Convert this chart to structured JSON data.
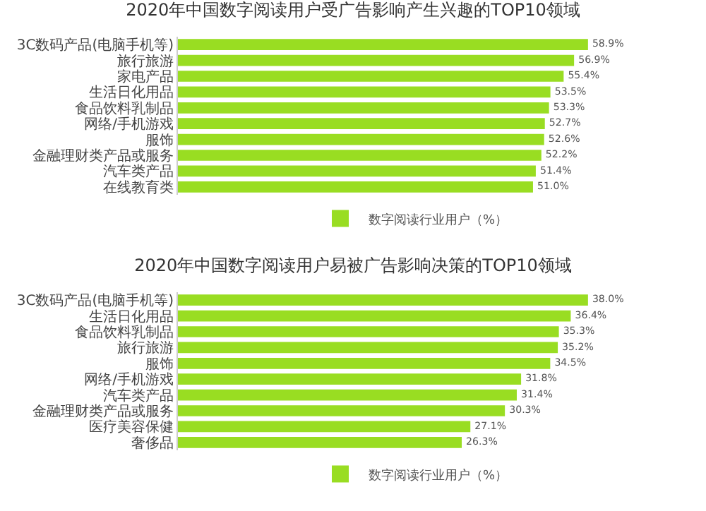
{
  "chart_data": [
    {
      "type": "bar",
      "orientation": "horizontal",
      "title": "2020年中国数字阅读用户受广告影响产生兴趣的TOP10领域",
      "categories": [
        "3C数码产品(电脑手机等)",
        "旅行旅游",
        "家电产品",
        "生活日化用品",
        "食品饮料乳制品",
        "网络/手机游戏",
        "服饰",
        "金融理财类产品或服务",
        "汽车类产品",
        "在线教育类"
      ],
      "series": [
        {
          "name": "数字阅读行业用户（%）",
          "color": "#99dd22",
          "values": [
            58.9,
            56.9,
            55.4,
            53.5,
            53.3,
            52.7,
            52.6,
            52.2,
            51.4,
            51.0
          ],
          "value_labels": [
            "58.9%",
            "56.9%",
            "55.4%",
            "53.5%",
            "53.3%",
            "52.7%",
            "52.6%",
            "52.2%",
            "51.4%",
            "51.0%"
          ]
        }
      ],
      "legend": "bottom",
      "grid": false,
      "tick_labels": "y"
    },
    {
      "type": "bar",
      "orientation": "horizontal",
      "title": "2020年中国数字阅读用户易被广告影响决策的TOP10领域",
      "categories": [
        "3C数码产品(电脑手机等)",
        "生活日化用品",
        "食品饮料乳制品",
        "旅行旅游",
        "服饰",
        "网络/手机游戏",
        "汽车类产品",
        "金融理财类产品或服务",
        "医疗美容保健",
        "奢侈品"
      ],
      "series": [
        {
          "name": "数字阅读行业用户（%）",
          "color": "#99dd22",
          "values": [
            38.0,
            36.4,
            35.3,
            35.2,
            34.5,
            31.8,
            31.4,
            30.3,
            27.1,
            26.3
          ],
          "value_labels": [
            "38.0%",
            "36.4%",
            "35.3%",
            "35.2%",
            "34.5%",
            "31.8%",
            "31.4%",
            "30.3%",
            "27.1%",
            "26.3%"
          ]
        }
      ],
      "legend": "bottom",
      "grid": false,
      "tick_labels": "y"
    }
  ]
}
